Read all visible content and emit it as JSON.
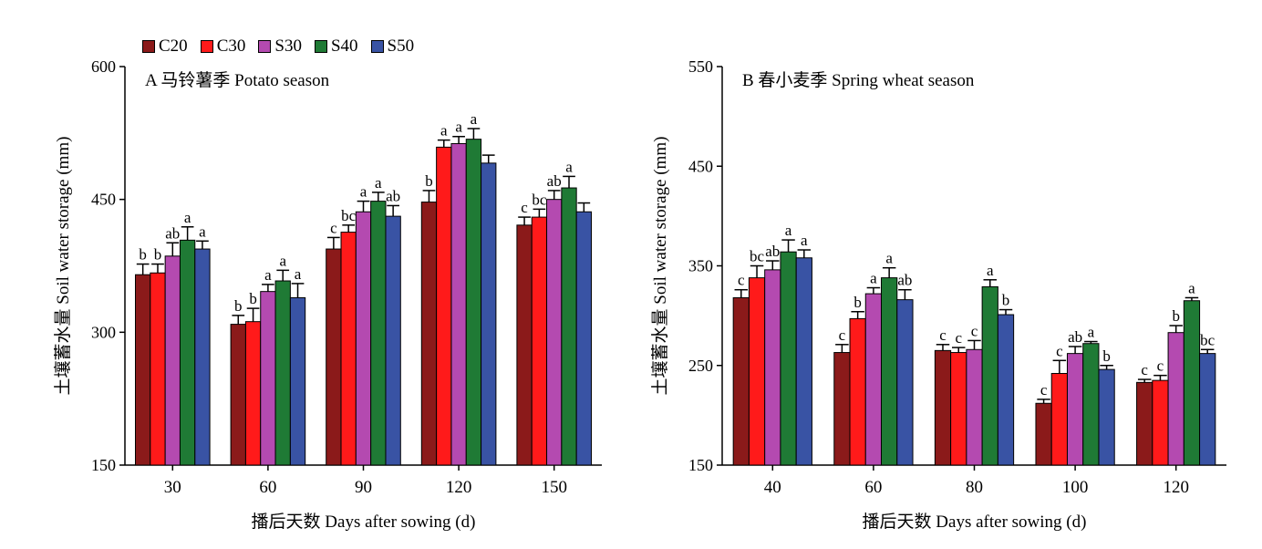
{
  "legend": [
    {
      "key": "C20",
      "color": "#8B1A1A"
    },
    {
      "key": "C30",
      "color": "#FF1A1A"
    },
    {
      "key": "S30",
      "color": "#B44AB0"
    },
    {
      "key": "S40",
      "color": "#1F7A35"
    },
    {
      "key": "S50",
      "color": "#3953A4"
    }
  ],
  "chart_data": [
    {
      "type": "bar",
      "panel": "A",
      "title": "马铃薯季 Potato season",
      "xlabel": "播后天数 Days after sowing (d)",
      "ylabel": "土壤蓄水量 Soil water storage (mm)",
      "ylim": [
        150,
        600
      ],
      "yticks": [
        150,
        300,
        450,
        600
      ],
      "categories": [
        "30",
        "60",
        "90",
        "120",
        "150"
      ],
      "series": [
        {
          "name": "C20",
          "values": [
            365,
            309,
            394,
            447,
            421
          ],
          "errors": [
            12,
            10,
            13,
            13,
            9
          ],
          "labels": [
            "b",
            "b",
            "c",
            "b",
            "c"
          ]
        },
        {
          "name": "C30",
          "values": [
            367,
            312,
            413,
            509,
            430
          ],
          "errors": [
            10,
            15,
            8,
            8,
            9
          ],
          "labels": [
            "b",
            "b",
            "bc",
            "a",
            "bc"
          ]
        },
        {
          "name": "S30",
          "values": [
            386,
            346,
            436,
            513,
            450
          ],
          "errors": [
            15,
            8,
            12,
            8,
            10
          ],
          "labels": [
            "ab",
            "a",
            "a",
            "a",
            "ab"
          ]
        },
        {
          "name": "S40",
          "values": [
            404,
            358,
            448,
            518,
            463
          ],
          "errors": [
            15,
            12,
            10,
            12,
            13
          ],
          "labels": [
            "a",
            "a",
            "a",
            "a",
            "a"
          ]
        },
        {
          "name": "S50",
          "values": [
            394,
            339,
            431,
            491,
            436
          ],
          "errors": [
            9,
            16,
            12,
            9,
            10
          ],
          "labels": [
            "a",
            "a",
            "ab",
            "",
            ""
          ]
        }
      ]
    },
    {
      "type": "bar",
      "panel": "B",
      "title": "春小麦季 Spring wheat season",
      "xlabel": "播后天数 Days after sowing (d)",
      "ylabel": "土壤蓄水量 Soil water storage (mm)",
      "ylim": [
        150,
        550
      ],
      "yticks": [
        150,
        250,
        350,
        450,
        550
      ],
      "categories": [
        "40",
        "60",
        "80",
        "100",
        "120"
      ],
      "series": [
        {
          "name": "C20",
          "values": [
            318,
            263,
            265,
            212,
            233
          ],
          "errors": [
            8,
            8,
            6,
            4,
            3
          ],
          "labels": [
            "c",
            "c",
            "c",
            "c",
            "c"
          ]
        },
        {
          "name": "C30",
          "values": [
            338,
            297,
            263,
            242,
            235
          ],
          "errors": [
            12,
            7,
            5,
            13,
            5
          ],
          "labels": [
            "bc",
            "b",
            "c",
            "c",
            "c"
          ]
        },
        {
          "name": "S30",
          "values": [
            346,
            322,
            266,
            262,
            283
          ],
          "errors": [
            9,
            6,
            9,
            7,
            7
          ],
          "labels": [
            "ab",
            "a",
            "c",
            "ab",
            "b"
          ]
        },
        {
          "name": "S40",
          "values": [
            364,
            338,
            329,
            272,
            315
          ],
          "errors": [
            12,
            10,
            7,
            2,
            3
          ],
          "labels": [
            "a",
            "a",
            "a",
            "a",
            "a"
          ]
        },
        {
          "name": "S50",
          "values": [
            358,
            316,
            301,
            246,
            262
          ],
          "errors": [
            8,
            10,
            5,
            4,
            4
          ],
          "labels": [
            "a",
            "ab",
            "b",
            "b",
            "bc"
          ]
        }
      ]
    }
  ]
}
